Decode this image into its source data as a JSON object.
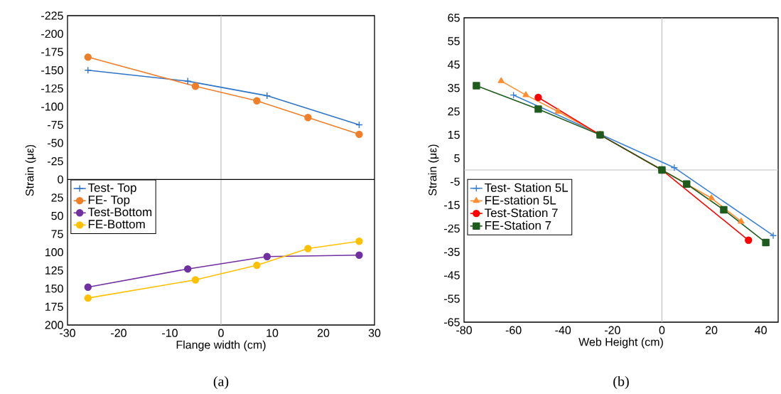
{
  "chart_data": [
    {
      "type": "line",
      "xlabel": "Flange width (cm)",
      "ylabel": "Strain (με)",
      "xlim": [
        -30,
        30
      ],
      "ylim": [
        200,
        -225
      ],
      "xticks": [
        -30,
        -20,
        -10,
        0,
        10,
        20,
        30
      ],
      "yticks": [
        -225,
        -200,
        -175,
        -150,
        -125,
        -100,
        -75,
        -50,
        -25,
        0,
        25,
        50,
        75,
        100,
        125,
        150,
        175,
        200
      ],
      "legend": "left",
      "grid": false,
      "annotations": [
        "(a)"
      ],
      "ref_lines": [
        {
          "axis": "x",
          "value": 0,
          "color": "#bfbfbf"
        },
        {
          "axis": "y",
          "value": 0,
          "color": "#000000"
        }
      ],
      "series": [
        {
          "name": "Test- Top",
          "color": "#2e75c6",
          "marker": "cross",
          "x": [
            -26,
            -6.5,
            9,
            27
          ],
          "values": [
            -150,
            -135,
            -115,
            -75
          ]
        },
        {
          "name": "FE- Top",
          "color": "#f07f2a",
          "marker": "circle",
          "x": [
            -26,
            -5,
            7,
            17,
            27
          ],
          "values": [
            -168,
            -128,
            -108,
            -85,
            -62
          ]
        },
        {
          "name": "Test-Bottom",
          "color": "#7030a0",
          "marker": "circle",
          "x": [
            -26,
            -6.5,
            9,
            27
          ],
          "values": [
            148,
            123,
            106,
            104
          ]
        },
        {
          "name": "FE-Bottom",
          "color": "#ffc000",
          "marker": "circle",
          "x": [
            -26,
            -5,
            7,
            17,
            27
          ],
          "values": [
            163,
            138,
            118,
            95,
            85
          ]
        }
      ]
    },
    {
      "type": "line",
      "xlabel": "Web Height (cm)",
      "ylabel": "Strain (με)",
      "xlim": [
        -80,
        47
      ],
      "ylim": [
        -65,
        65
      ],
      "xticks": [
        -80,
        -60,
        -40,
        -20,
        0,
        20,
        40
      ],
      "yticks": [
        -65,
        -55,
        -45,
        -35,
        -25,
        -15,
        -5,
        5,
        15,
        25,
        35,
        45,
        55,
        65
      ],
      "legend": "left",
      "grid": false,
      "annotations": [
        "(b)"
      ],
      "ref_lines": [
        {
          "axis": "x",
          "value": 0,
          "color": "#bfbfbf"
        },
        {
          "axis": "y",
          "value": 0,
          "color": "#bfbfbf"
        }
      ],
      "series": [
        {
          "name": "Test- Station 5L",
          "color": "#3a82d6",
          "marker": "cross",
          "x": [
            -60,
            5,
            45
          ],
          "values": [
            32,
            1,
            -28
          ]
        },
        {
          "name": "FE-station 5L",
          "color": "#ff8c2e",
          "marker": "triangle",
          "x": [
            -65,
            -55,
            -42,
            -25,
            0,
            20,
            32
          ],
          "values": [
            38,
            32,
            25,
            15,
            0,
            -12,
            -22
          ]
        },
        {
          "name": "Test-Station 7",
          "color": "#ff0000",
          "marker": "circle",
          "x": [
            -50,
            -25,
            0,
            35
          ],
          "values": [
            31,
            15,
            0,
            -30
          ]
        },
        {
          "name": "FE-Station 7",
          "color": "#1e5c1e",
          "marker": "square",
          "x": [
            -75,
            -50,
            -25,
            0,
            10,
            25,
            42
          ],
          "values": [
            36,
            26,
            15,
            0,
            -6,
            -17,
            -31
          ]
        }
      ]
    }
  ]
}
